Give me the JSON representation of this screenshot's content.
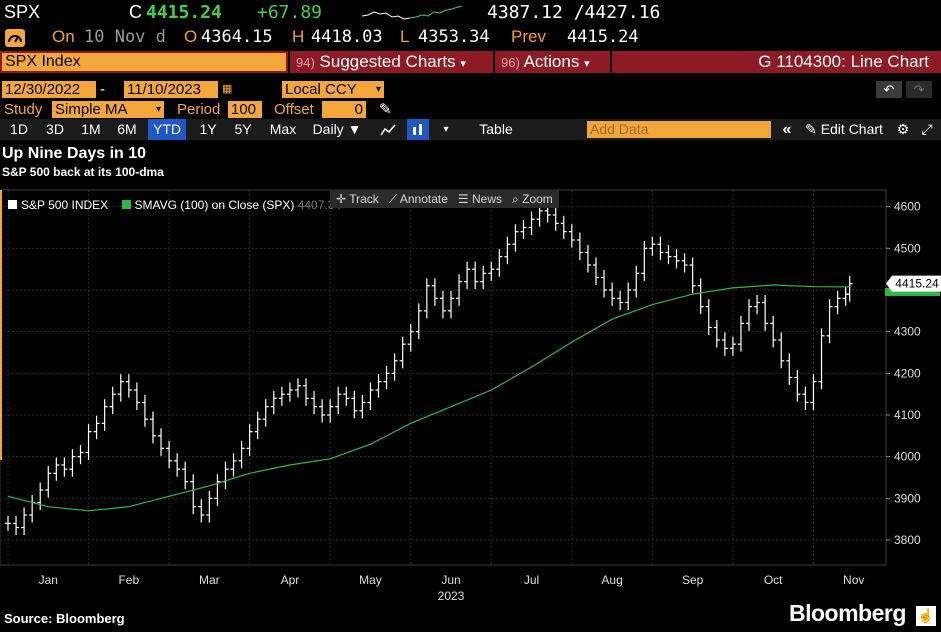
{
  "quote": {
    "ticker": "SPX",
    "last_prefix": "C",
    "last": "4415.24",
    "change": "+67.89",
    "range": "4387.12 /4427.16",
    "on_label": "On",
    "on_date": "10 Nov d",
    "open_label": "O",
    "open": "4364.15",
    "high_label": "H",
    "high": "4418.03",
    "low_label": "L",
    "low": "4353.34",
    "prev_label": "Prev",
    "prev": "4415.24"
  },
  "security_bar": {
    "security": "SPX Index",
    "suggested_code": "94)",
    "suggested_label": "Suggested Charts",
    "actions_code": "96)",
    "actions_label": "Actions",
    "caret": "▾",
    "function_title": "G 1104300: Line Chart"
  },
  "range_row": {
    "start_date": "12/30/2022",
    "dash": "-",
    "end_date": "11/10/2023",
    "currency": "Local CCY"
  },
  "study_row": {
    "study_label": "Study",
    "study_value": "Simple MA",
    "period_label": "Period",
    "period_value": "100",
    "offset_label": "Offset",
    "offset_value": "0"
  },
  "toolbar": {
    "periods": [
      "1D",
      "3D",
      "1M",
      "6M",
      "YTD",
      "1Y",
      "5Y",
      "Max"
    ],
    "active_period": "YTD",
    "frequency": "Daily ▼",
    "table_label": "Table",
    "add_data_placeholder": "Add Data",
    "edit_chart_label": "Edit Chart",
    "double_chevron": "«"
  },
  "chart_tools": {
    "track": "Track",
    "annotate": "Annotate",
    "news": "News",
    "zoom": "Zoom"
  },
  "colors": {
    "accent_amber": "#f3a73a",
    "up_green": "#3fd24a",
    "header_red": "#8d1a24",
    "active_blue": "#1f57c4",
    "ma_line": "#2fb84a",
    "price_line": "#ffffff"
  },
  "chart_data": {
    "type": "line",
    "title": "Up Nine Days in 10",
    "subtitle": "S&P 500 back at its 100-dma",
    "legend": [
      "S&P 500 INDEX",
      "SMAVG (100)  on Close (SPX)"
    ],
    "legend_value": "4407.34",
    "last_value_label": "4415.24",
    "xlabel": "2023",
    "x_ticks": [
      "Jan",
      "Feb",
      "Mar",
      "Apr",
      "May",
      "Jun",
      "Jul",
      "Aug",
      "Sep",
      "Oct",
      "Nov"
    ],
    "y_ticks": [
      3800,
      3900,
      4000,
      4100,
      4200,
      4300,
      4400,
      4500,
      4600
    ],
    "ylim": [
      3740,
      4640
    ],
    "grid": true,
    "series": [
      {
        "name": "S&P 500 INDEX",
        "style": "ohlc",
        "points": [
          [
            0.0,
            3840
          ],
          [
            0.1,
            3830
          ],
          [
            0.2,
            3860
          ],
          [
            0.3,
            3890
          ],
          [
            0.4,
            3920
          ],
          [
            0.5,
            3960
          ],
          [
            0.6,
            3980
          ],
          [
            0.7,
            3970
          ],
          [
            0.8,
            4000
          ],
          [
            0.9,
            4010
          ],
          [
            1.0,
            4060
          ],
          [
            1.1,
            4080
          ],
          [
            1.2,
            4120
          ],
          [
            1.3,
            4150
          ],
          [
            1.4,
            4180
          ],
          [
            1.5,
            4160
          ],
          [
            1.6,
            4130
          ],
          [
            1.7,
            4090
          ],
          [
            1.8,
            4050
          ],
          [
            1.9,
            4020
          ],
          [
            2.0,
            3990
          ],
          [
            2.1,
            3970
          ],
          [
            2.2,
            3940
          ],
          [
            2.3,
            3880
          ],
          [
            2.4,
            3860
          ],
          [
            2.5,
            3900
          ],
          [
            2.6,
            3940
          ],
          [
            2.7,
            3970
          ],
          [
            2.8,
            3990
          ],
          [
            2.9,
            4020
          ],
          [
            3.0,
            4060
          ],
          [
            3.1,
            4090
          ],
          [
            3.2,
            4120
          ],
          [
            3.3,
            4140
          ],
          [
            3.4,
            4150
          ],
          [
            3.5,
            4160
          ],
          [
            3.6,
            4170
          ],
          [
            3.7,
            4140
          ],
          [
            3.8,
            4120
          ],
          [
            3.9,
            4100
          ],
          [
            4.0,
            4120
          ],
          [
            4.1,
            4150
          ],
          [
            4.2,
            4140
          ],
          [
            4.3,
            4110
          ],
          [
            4.4,
            4130
          ],
          [
            4.5,
            4160
          ],
          [
            4.6,
            4180
          ],
          [
            4.7,
            4200
          ],
          [
            4.8,
            4230
          ],
          [
            4.9,
            4270
          ],
          [
            5.0,
            4300
          ],
          [
            5.1,
            4350
          ],
          [
            5.2,
            4410
          ],
          [
            5.3,
            4380
          ],
          [
            5.4,
            4350
          ],
          [
            5.5,
            4380
          ],
          [
            5.6,
            4420
          ],
          [
            5.7,
            4450
          ],
          [
            5.8,
            4420
          ],
          [
            5.9,
            4440
          ],
          [
            6.0,
            4450
          ],
          [
            6.1,
            4480
          ],
          [
            6.2,
            4510
          ],
          [
            6.3,
            4540
          ],
          [
            6.4,
            4550
          ],
          [
            6.5,
            4570
          ],
          [
            6.6,
            4590
          ],
          [
            6.7,
            4580
          ],
          [
            6.8,
            4560
          ],
          [
            6.9,
            4540
          ],
          [
            7.0,
            4520
          ],
          [
            7.1,
            4490
          ],
          [
            7.2,
            4460
          ],
          [
            7.3,
            4430
          ],
          [
            7.4,
            4400
          ],
          [
            7.5,
            4380
          ],
          [
            7.6,
            4370
          ],
          [
            7.7,
            4400
          ],
          [
            7.8,
            4440
          ],
          [
            7.9,
            4500
          ],
          [
            8.0,
            4510
          ],
          [
            8.1,
            4490
          ],
          [
            8.2,
            4480
          ],
          [
            8.3,
            4470
          ],
          [
            8.4,
            4460
          ],
          [
            8.5,
            4410
          ],
          [
            8.6,
            4360
          ],
          [
            8.7,
            4310
          ],
          [
            8.8,
            4280
          ],
          [
            8.9,
            4260
          ],
          [
            9.0,
            4270
          ],
          [
            9.1,
            4320
          ],
          [
            9.2,
            4360
          ],
          [
            9.3,
            4370
          ],
          [
            9.4,
            4320
          ],
          [
            9.5,
            4280
          ],
          [
            9.6,
            4230
          ],
          [
            9.7,
            4190
          ],
          [
            9.8,
            4150
          ],
          [
            9.9,
            4130
          ],
          [
            10.0,
            4180
          ],
          [
            10.1,
            4290
          ],
          [
            10.2,
            4360
          ],
          [
            10.3,
            4380
          ],
          [
            10.4,
            4390
          ],
          [
            10.45,
            4415.24
          ]
        ]
      },
      {
        "name": "SMAVG (100)  on Close (SPX)",
        "style": "line",
        "points": [
          [
            0.0,
            3905
          ],
          [
            0.5,
            3880
          ],
          [
            1.0,
            3870
          ],
          [
            1.5,
            3880
          ],
          [
            2.0,
            3905
          ],
          [
            2.5,
            3930
          ],
          [
            3.0,
            3960
          ],
          [
            3.5,
            3980
          ],
          [
            4.0,
            3995
          ],
          [
            4.5,
            4030
          ],
          [
            5.0,
            4080
          ],
          [
            5.5,
            4120
          ],
          [
            6.0,
            4160
          ],
          [
            6.5,
            4215
          ],
          [
            7.0,
            4275
          ],
          [
            7.5,
            4330
          ],
          [
            8.0,
            4365
          ],
          [
            8.5,
            4390
          ],
          [
            9.0,
            4405
          ],
          [
            9.5,
            4412
          ],
          [
            10.0,
            4408
          ],
          [
            10.45,
            4407.34
          ]
        ]
      }
    ]
  },
  "footer": {
    "source": "Source: Bloomberg",
    "brand": "Bloomberg"
  }
}
